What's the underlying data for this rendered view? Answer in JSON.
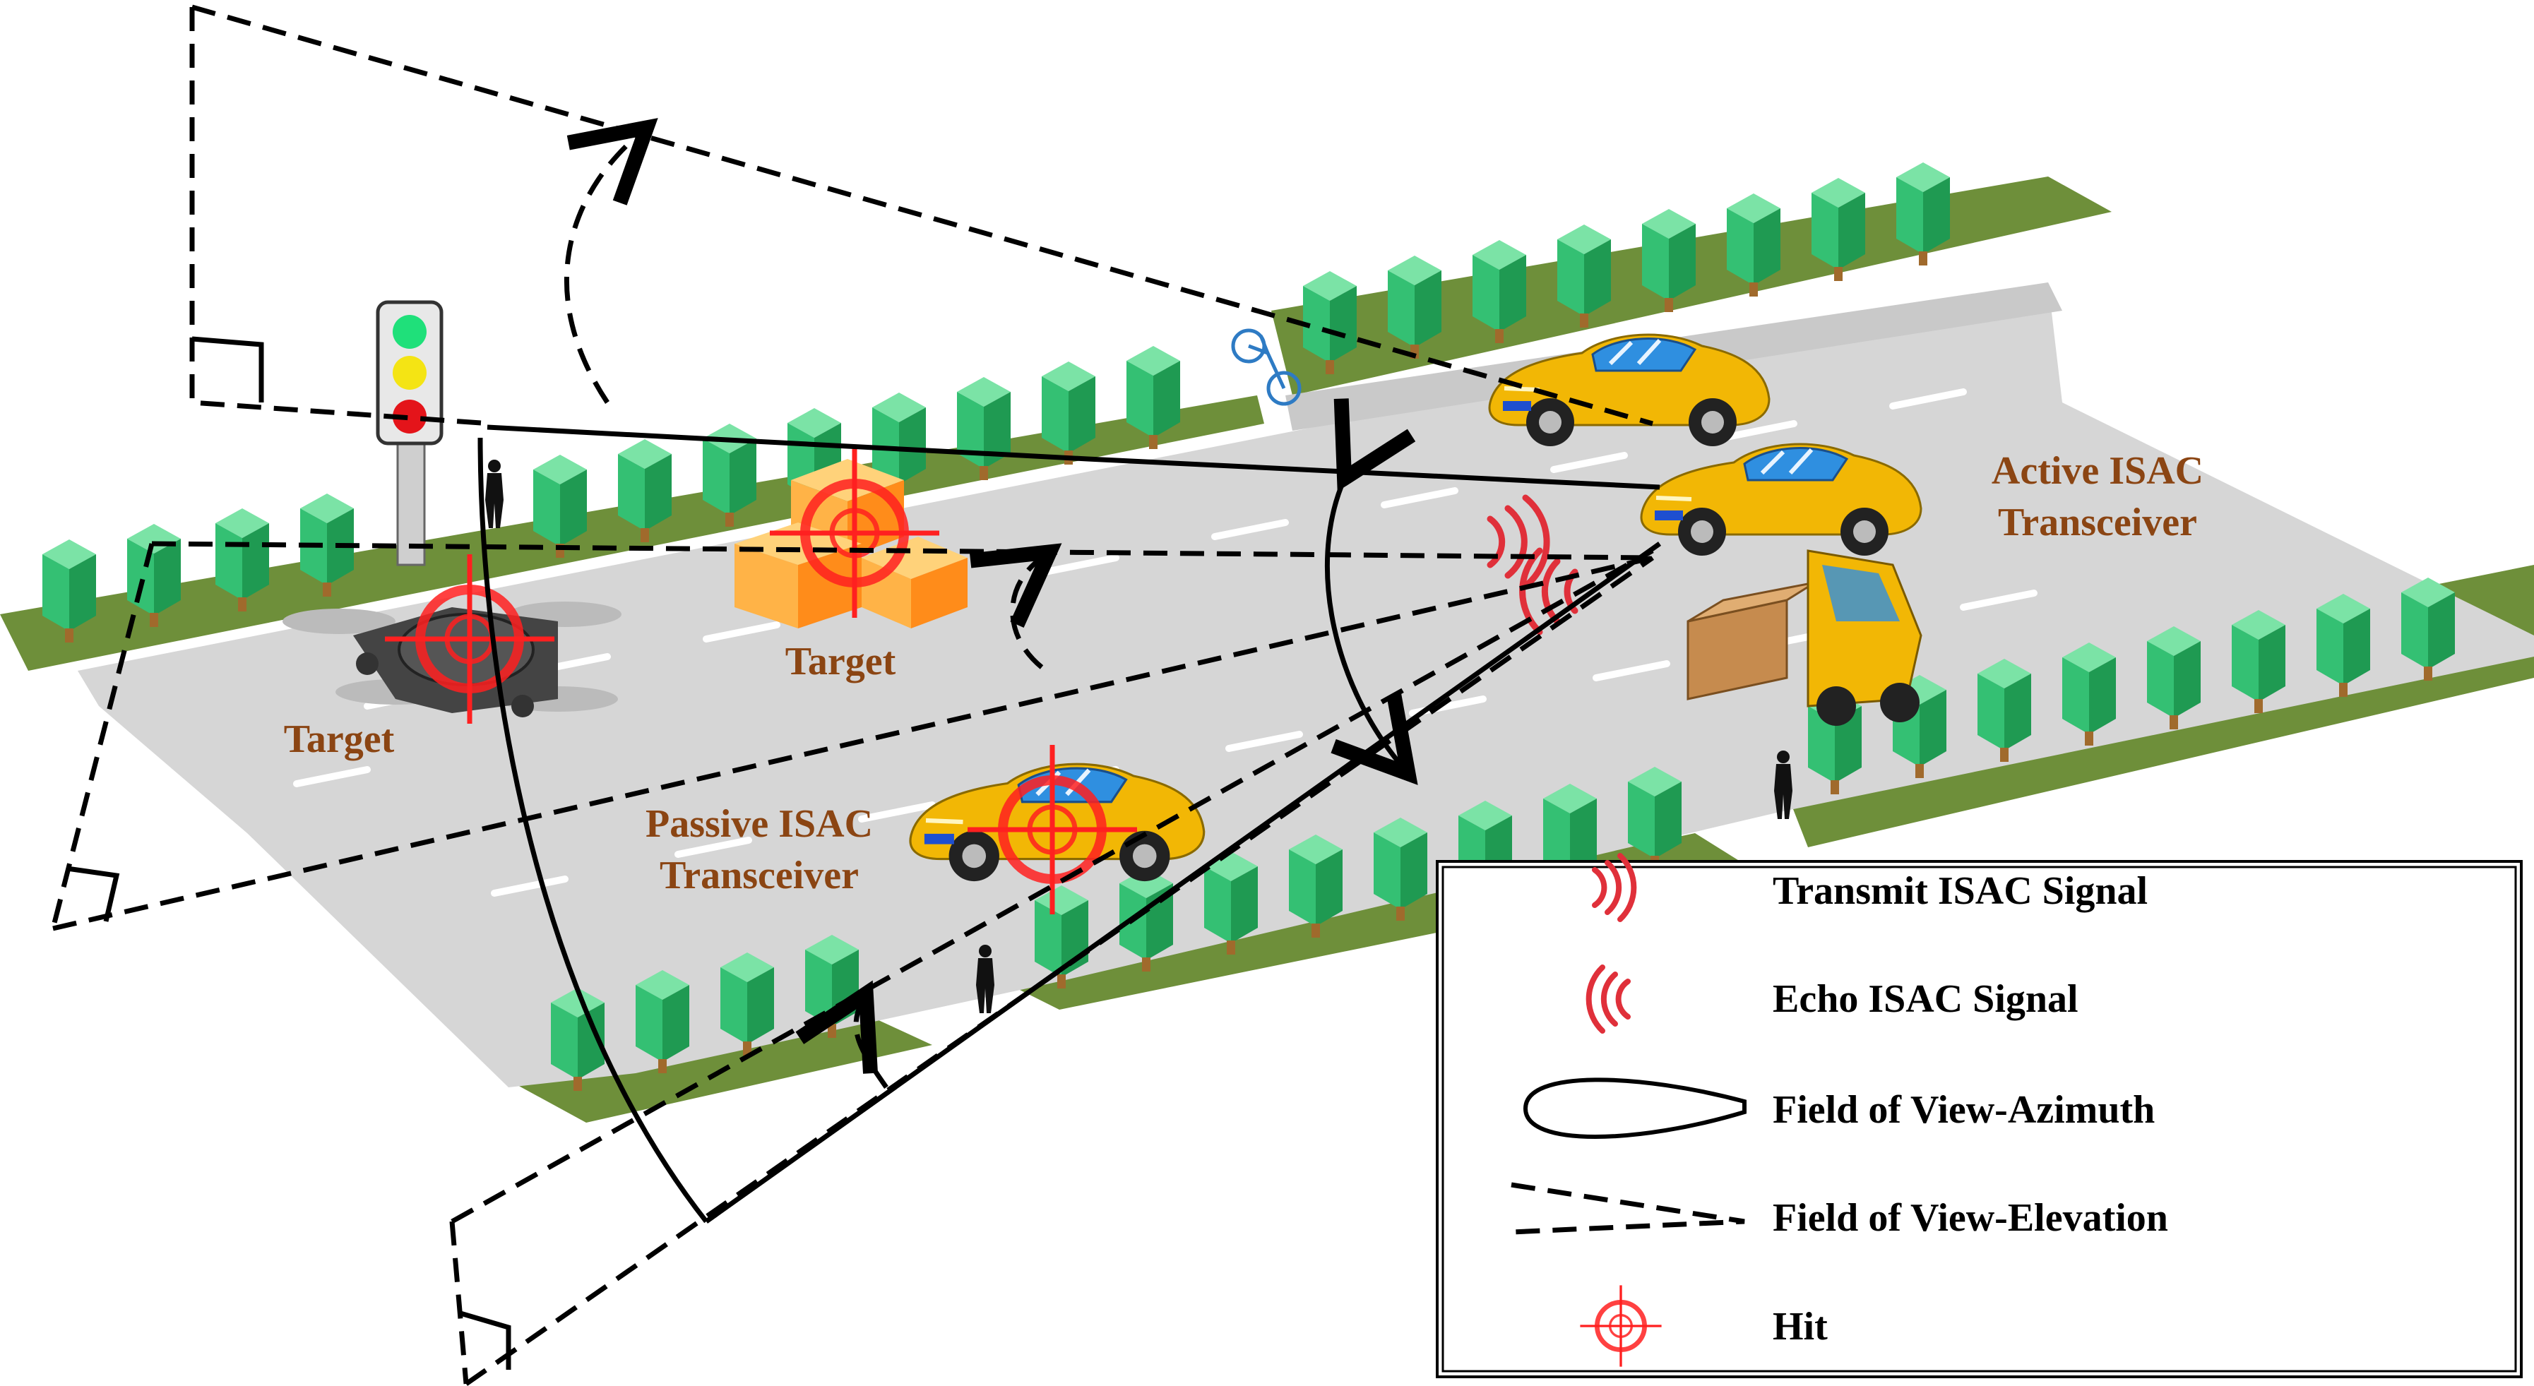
{
  "labels": {
    "target_drone": "Target",
    "target_box": "Target",
    "active_line1": "Active ISAC",
    "active_line2": "Transceiver",
    "passive_line1": "Passive ISAC",
    "passive_line2": "Transceiver"
  },
  "legend": {
    "items": [
      {
        "label": "Transmit ISAC Signal",
        "icon": "transmit-signal-icon"
      },
      {
        "label": "Echo ISAC Signal",
        "icon": "echo-signal-icon"
      },
      {
        "label": "Field of View-Azimuth",
        "icon": "azimuth-lobe-icon"
      },
      {
        "label": "Field of View-Elevation",
        "icon": "elevation-wedge-icon"
      },
      {
        "label": "Hit",
        "icon": "hit-crosshair-icon"
      }
    ]
  },
  "colors": {
    "road": "#d4d4d4",
    "grass": "#6e8f3a",
    "tree_light": "#4fd68a",
    "tree_dark": "#27a85e",
    "car": "#f2b705",
    "label_brown": "#8b4513",
    "signal_red": "#e0303a",
    "hit_red": "#ff0000"
  }
}
